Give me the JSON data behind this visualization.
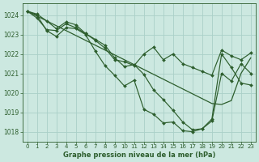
{
  "title": "Graphe pression niveau de la mer (hPa)",
  "bg_color": "#cce8e0",
  "grid_color": "#aad0c8",
  "line_color": "#2d5e2d",
  "ylim": [
    1017.5,
    1024.6
  ],
  "xlim": [
    -0.5,
    23.5
  ],
  "yticks": [
    1018,
    1019,
    1020,
    1021,
    1022,
    1023,
    1024
  ],
  "xticks": [
    0,
    1,
    2,
    3,
    4,
    5,
    6,
    7,
    8,
    9,
    10,
    11,
    12,
    13,
    14,
    15,
    16,
    17,
    18,
    19,
    20,
    21,
    22,
    23
  ],
  "series1": [
    1024.2,
    1023.95,
    1023.7,
    1023.45,
    1023.2,
    1022.95,
    1022.7,
    1022.45,
    1022.2,
    1021.95,
    1021.7,
    1021.45,
    1021.2,
    1020.95,
    1020.7,
    1020.45,
    1020.2,
    1019.95,
    1019.7,
    1019.45,
    1019.4,
    1019.6,
    1021.0,
    1021.8
  ],
  "series2": [
    1024.2,
    1023.85,
    1023.25,
    1023.2,
    1023.55,
    1023.35,
    1023.05,
    1022.7,
    1022.3,
    1021.7,
    1021.6,
    1021.4,
    1022.0,
    1022.35,
    1021.7,
    1022.0,
    1021.5,
    1021.3,
    1021.1,
    1020.9,
    1022.2,
    1021.9,
    1021.7,
    1022.05
  ],
  "series3": [
    1024.2,
    1024.05,
    1023.7,
    1023.3,
    1023.65,
    1023.5,
    1023.05,
    1022.75,
    1022.45,
    1021.8,
    1021.35,
    1021.45,
    1020.95,
    1020.15,
    1019.65,
    1019.1,
    1018.5,
    1018.1,
    1018.15,
    1018.55,
    1021.0,
    1020.6,
    1021.5,
    1021.0
  ],
  "series4": [
    1024.2,
    1024.0,
    1023.2,
    1022.9,
    1023.35,
    1023.3,
    1023.0,
    1022.15,
    1021.4,
    1020.9,
    1020.35,
    1020.65,
    1019.15,
    1018.9,
    1018.45,
    1018.5,
    1018.05,
    1018.0,
    1018.15,
    1018.65,
    1022.0,
    1021.3,
    1020.5,
    1020.4
  ]
}
